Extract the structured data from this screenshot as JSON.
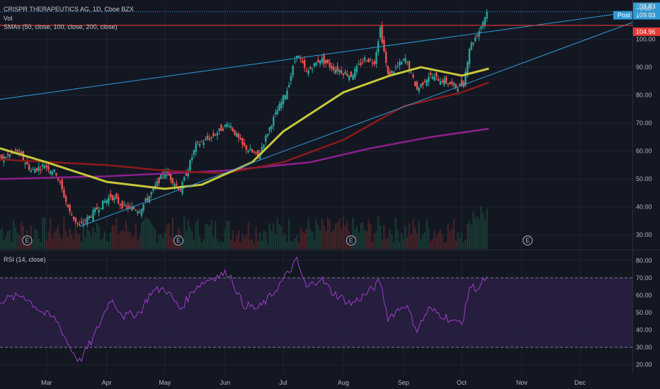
{
  "header": {
    "symbol_line": "CRISPR THERAPEUTICS AG, 1D, Cboe BZX",
    "vol_label": "Vol",
    "sma_label": "SMAs (50, close, 100, close, 200, close)",
    "rsi_label": "RSI (14, close)",
    "currency_button": "USD"
  },
  "price_labels": {
    "last": "109.83",
    "post_tag": "Post",
    "post_value": "109.83",
    "level": "104.96"
  },
  "earnings_marker": "E",
  "colors": {
    "background": "#131722",
    "up": "#26a69a",
    "down": "#ef5350",
    "sma50": "#c6c83a",
    "sma100": "#8b1a1a",
    "sma200": "#8e1f8e",
    "trendline": "#2e9bd6",
    "level_line": "#e53935",
    "rsi": "#9c3fc5"
  },
  "chart_data": [
    {
      "type": "candlestick",
      "title": "CRISPR THERAPEUTICS AG, 1D, Cboe BZX",
      "y_ticks": [
        30,
        40,
        50,
        60,
        70,
        80,
        90,
        100
      ],
      "ylim": [
        25,
        112
      ],
      "x_ticks": [
        "Mar",
        "Apr",
        "May",
        "Jun",
        "Jul",
        "Aug",
        "Sep",
        "Oct",
        "Nov",
        "Dec"
      ],
      "x_tick_dates": [
        "2024-03-01",
        "2024-04-01",
        "2024-05-01",
        "2024-06-01",
        "2024-07-01",
        "2024-08-01",
        "2024-09-01",
        "2024-10-01",
        "2024-11-01",
        "2024-12-01"
      ],
      "xlim": [
        "2024-02-06",
        "2024-12-28"
      ],
      "close_anchors": [
        [
          "2024-02-06",
          57
        ],
        [
          "2024-02-15",
          60
        ],
        [
          "2024-02-22",
          53
        ],
        [
          "2024-02-29",
          55
        ],
        [
          "2024-03-06",
          52
        ],
        [
          "2024-03-13",
          38
        ],
        [
          "2024-03-18",
          33
        ],
        [
          "2024-03-25",
          38
        ],
        [
          "2024-04-03",
          44
        ],
        [
          "2024-04-10",
          40
        ],
        [
          "2024-04-18",
          39
        ],
        [
          "2024-04-24",
          45
        ],
        [
          "2024-05-01",
          53
        ],
        [
          "2024-05-09",
          46
        ],
        [
          "2024-05-17",
          62
        ],
        [
          "2024-05-25",
          65
        ],
        [
          "2024-06-03",
          70
        ],
        [
          "2024-06-10",
          62
        ],
        [
          "2024-06-18",
          58
        ],
        [
          "2024-06-25",
          70
        ],
        [
          "2024-07-03",
          82
        ],
        [
          "2024-07-08",
          95
        ],
        [
          "2024-07-13",
          88
        ],
        [
          "2024-07-20",
          93
        ],
        [
          "2024-07-26",
          90
        ],
        [
          "2024-08-05",
          87
        ],
        [
          "2024-08-12",
          93
        ],
        [
          "2024-08-17",
          92
        ],
        [
          "2024-08-20",
          104
        ],
        [
          "2024-08-24",
          87
        ],
        [
          "2024-09-02",
          93
        ],
        [
          "2024-09-08",
          82
        ],
        [
          "2024-09-14",
          87
        ],
        [
          "2024-09-22",
          85
        ],
        [
          "2024-09-28",
          83
        ],
        [
          "2024-10-02",
          84
        ],
        [
          "2024-10-05",
          97
        ],
        [
          "2024-10-10",
          103
        ],
        [
          "2024-10-14",
          109.83
        ]
      ],
      "sma50": [
        [
          "2024-02-06",
          61
        ],
        [
          "2024-03-01",
          56
        ],
        [
          "2024-04-01",
          49
        ],
        [
          "2024-05-01",
          46.5
        ],
        [
          "2024-05-20",
          48
        ],
        [
          "2024-06-15",
          56
        ],
        [
          "2024-07-01",
          67
        ],
        [
          "2024-08-01",
          81
        ],
        [
          "2024-08-25",
          87
        ],
        [
          "2024-09-10",
          90
        ],
        [
          "2024-10-01",
          87
        ],
        [
          "2024-10-15",
          89.5
        ]
      ],
      "sma100": [
        [
          "2024-02-06",
          57
        ],
        [
          "2024-04-01",
          55
        ],
        [
          "2024-05-01",
          53
        ],
        [
          "2024-06-01",
          52
        ],
        [
          "2024-07-01",
          56
        ],
        [
          "2024-08-01",
          64
        ],
        [
          "2024-09-01",
          76
        ],
        [
          "2024-10-01",
          81
        ],
        [
          "2024-10-15",
          84.5
        ]
      ],
      "sma200": [
        [
          "2024-02-06",
          50
        ],
        [
          "2024-04-01",
          51
        ],
        [
          "2024-06-01",
          53
        ],
        [
          "2024-07-15",
          56
        ],
        [
          "2024-08-15",
          61
        ],
        [
          "2024-09-15",
          65
        ],
        [
          "2024-10-15",
          68
        ]
      ],
      "trendlines": [
        {
          "from": [
            "2024-02-06",
            78.5
          ],
          "to": [
            "2024-12-28",
            109.8
          ]
        },
        {
          "from": [
            "2024-03-18",
            33
          ],
          "to": [
            "2024-12-28",
            106
          ]
        }
      ],
      "horizontal_levels": [
        {
          "value": 104.96,
          "style": "solid"
        },
        {
          "value": 109.83,
          "style": "dotted"
        }
      ],
      "earnings_dates": [
        "2024-02-20",
        "2024-05-08",
        "2024-08-05",
        "2024-11-04"
      ]
    },
    {
      "type": "line",
      "title": "RSI (14, close)",
      "y_ticks": [
        20,
        30,
        40,
        50,
        60,
        70,
        80
      ],
      "ylim": [
        15,
        85
      ],
      "band": [
        30,
        70
      ],
      "anchors": [
        [
          "2024-02-06",
          57
        ],
        [
          "2024-02-18",
          60
        ],
        [
          "2024-02-28",
          50
        ],
        [
          "2024-03-06",
          46
        ],
        [
          "2024-03-13",
          30
        ],
        [
          "2024-03-18",
          22
        ],
        [
          "2024-03-25",
          35
        ],
        [
          "2024-04-03",
          58
        ],
        [
          "2024-04-10",
          48
        ],
        [
          "2024-04-18",
          50
        ],
        [
          "2024-04-24",
          62
        ],
        [
          "2024-05-01",
          64
        ],
        [
          "2024-05-09",
          52
        ],
        [
          "2024-05-17",
          65
        ],
        [
          "2024-05-25",
          70
        ],
        [
          "2024-06-03",
          73
        ],
        [
          "2024-06-10",
          55
        ],
        [
          "2024-06-18",
          52
        ],
        [
          "2024-06-25",
          60
        ],
        [
          "2024-07-03",
          72
        ],
        [
          "2024-07-08",
          80
        ],
        [
          "2024-07-13",
          64
        ],
        [
          "2024-07-20",
          70
        ],
        [
          "2024-07-26",
          62
        ],
        [
          "2024-08-05",
          55
        ],
        [
          "2024-08-12",
          60
        ],
        [
          "2024-08-20",
          68
        ],
        [
          "2024-08-24",
          47
        ],
        [
          "2024-09-02",
          55
        ],
        [
          "2024-09-08",
          40
        ],
        [
          "2024-09-14",
          52
        ],
        [
          "2024-09-22",
          48
        ],
        [
          "2024-09-28",
          44
        ],
        [
          "2024-10-02",
          46
        ],
        [
          "2024-10-05",
          65
        ],
        [
          "2024-10-10",
          64
        ],
        [
          "2024-10-14",
          71
        ]
      ]
    }
  ]
}
